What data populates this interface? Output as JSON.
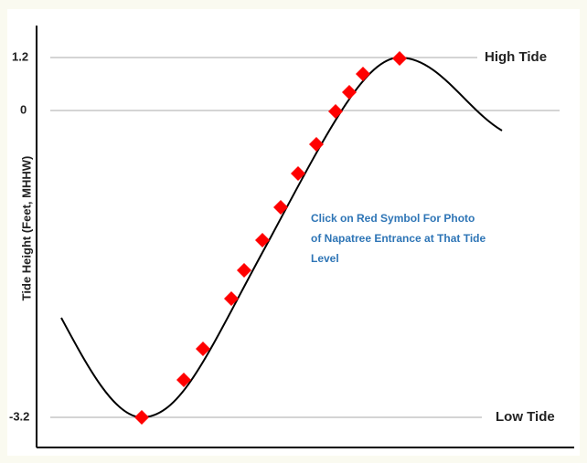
{
  "y_axis": {
    "label": "Tide Height (Feet, MHHW)",
    "ticks": [
      "1.2",
      "0",
      "-3.2"
    ]
  },
  "annotations": {
    "high": "High Tide",
    "low": "Low Tide"
  },
  "instruction": [
    "Click on Red Symbol For Photo",
    "of Napatree Entrance at That Tide",
    "Level"
  ]
}
